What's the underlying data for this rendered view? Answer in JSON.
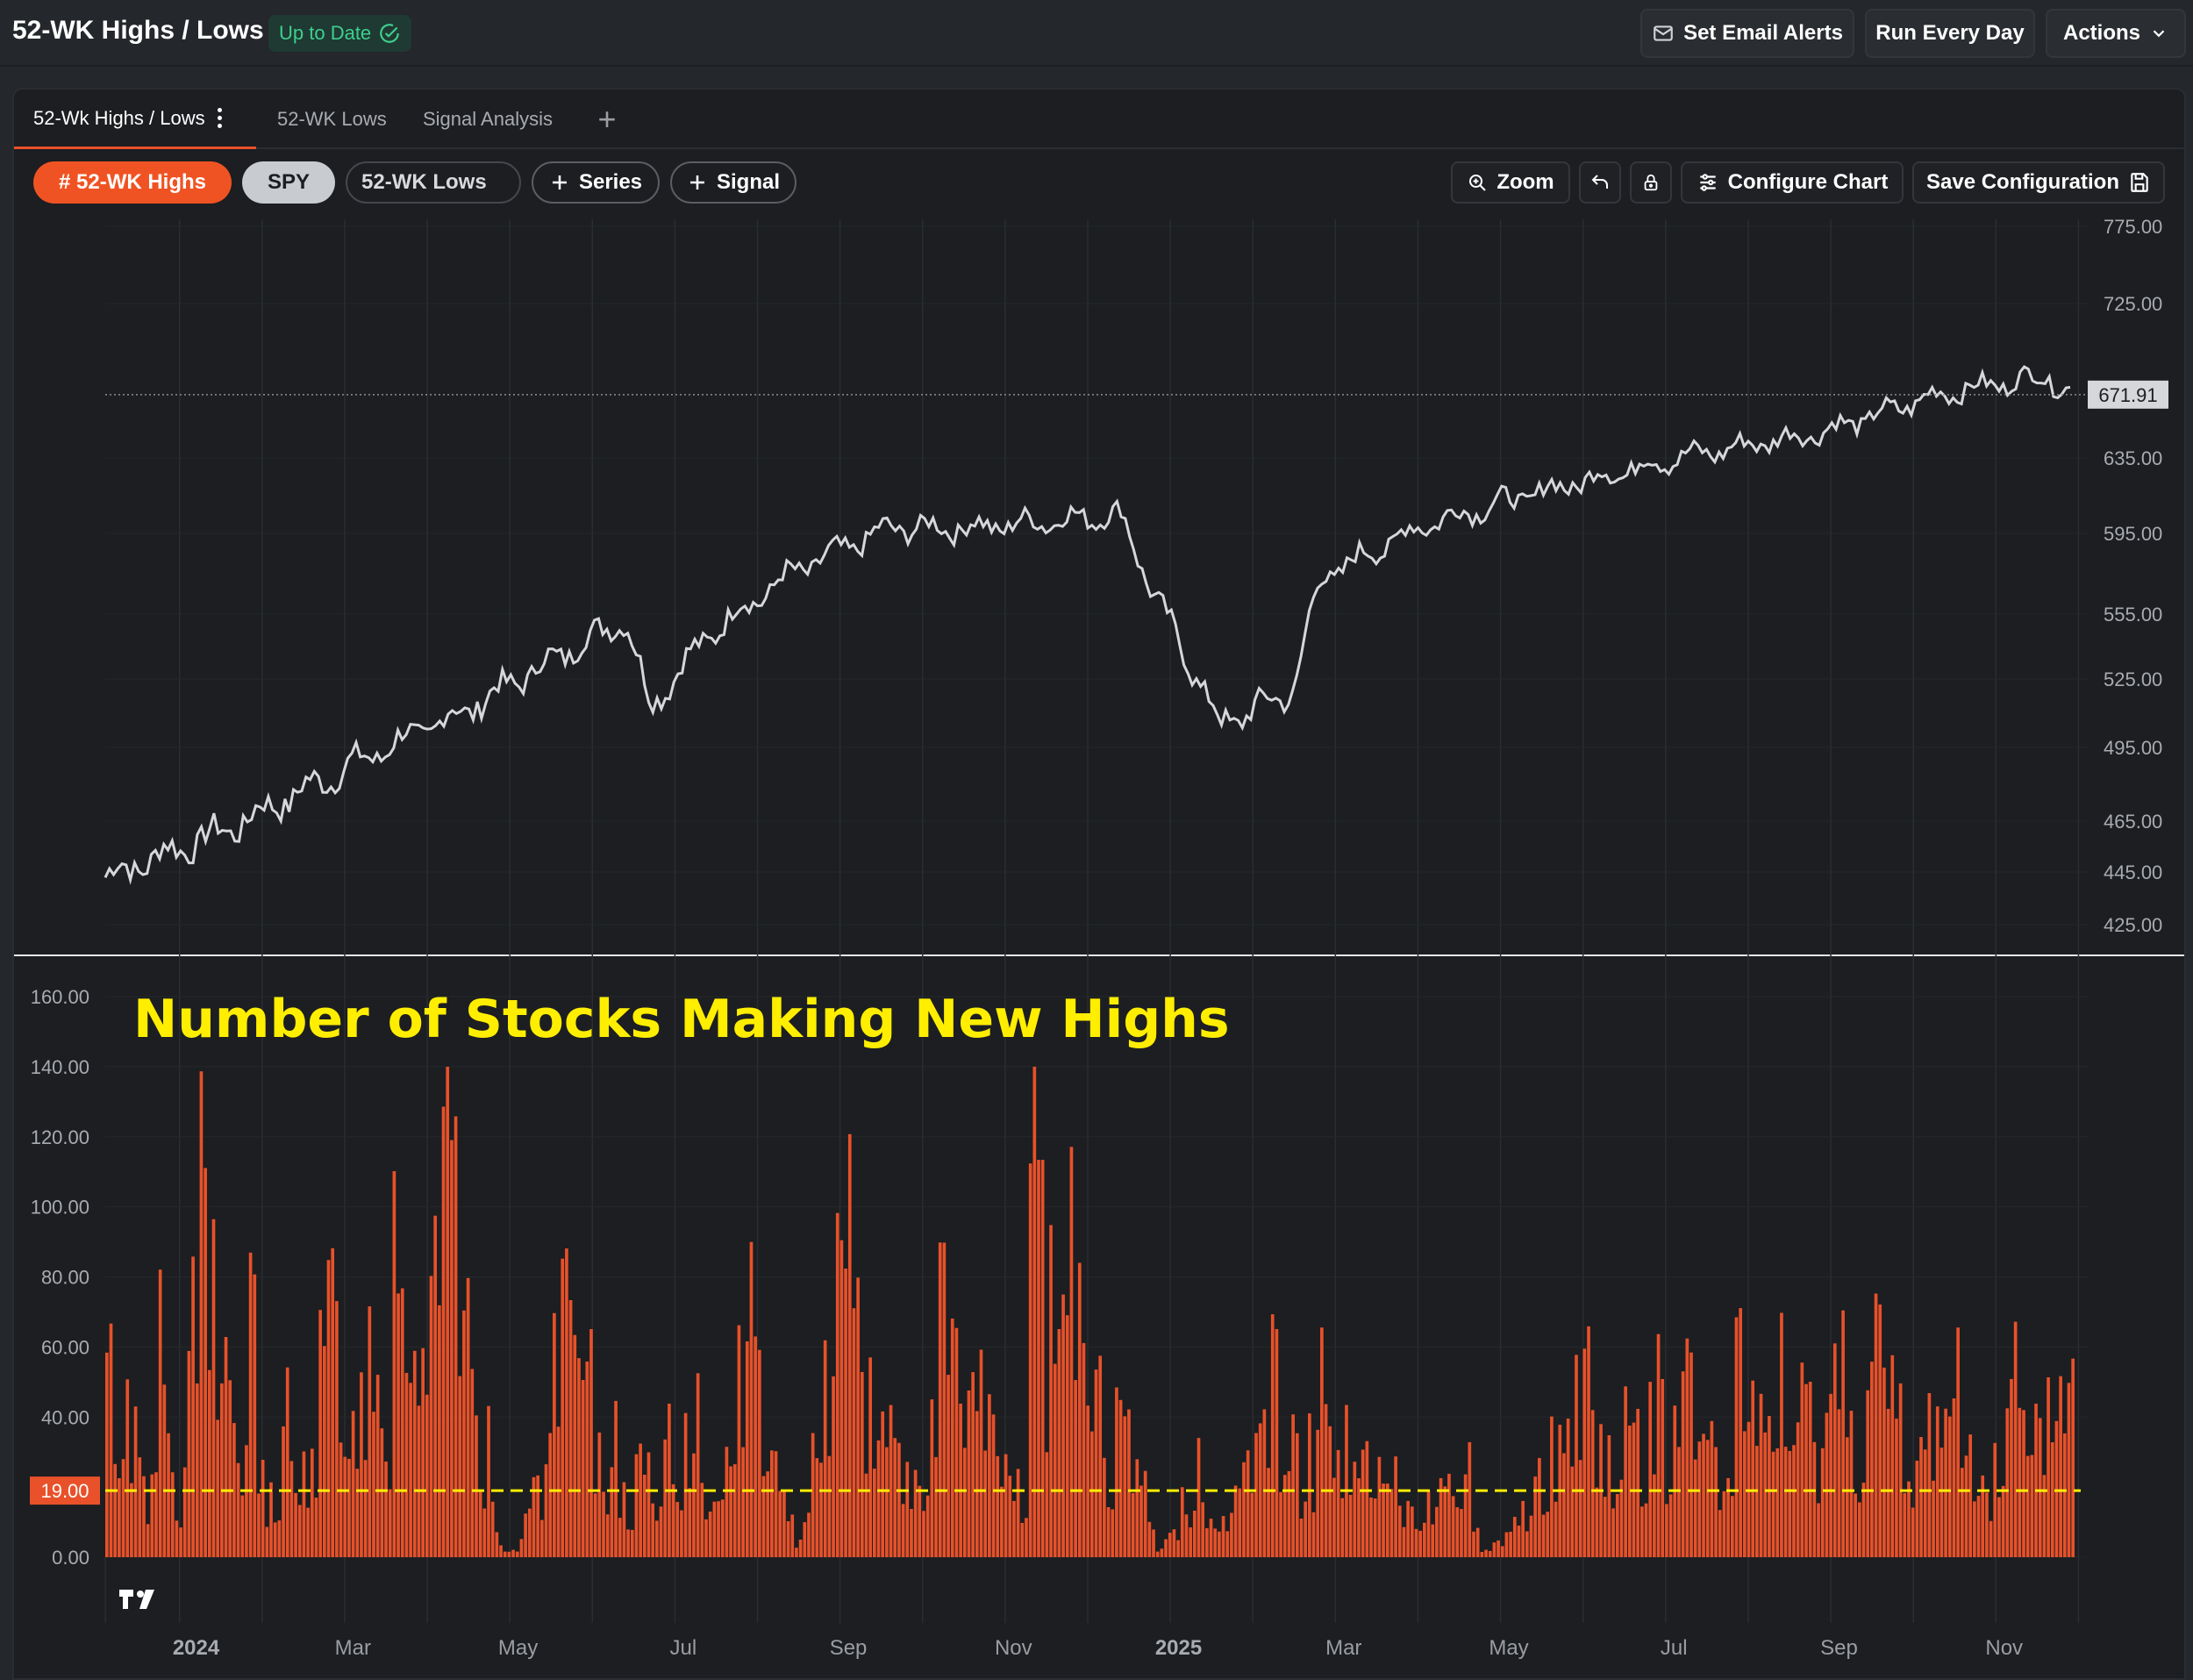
{
  "header": {
    "title": "52-WK Highs / Lows",
    "status": "Up to Date",
    "set_email_alerts": "Set Email Alerts",
    "run_every_day": "Run Every Day",
    "actions": "Actions"
  },
  "tabs": [
    {
      "label": "52-Wk Highs / Lows",
      "active": true
    },
    {
      "label": "52-WK Lows",
      "active": false
    },
    {
      "label": "Signal Analysis",
      "active": false
    }
  ],
  "toolbar": {
    "series_chips": [
      "# 52-WK Highs",
      "SPY",
      "52-WK Lows"
    ],
    "add_series": "Series",
    "add_signal": "Signal",
    "zoom": "Zoom",
    "configure_chart": "Configure Chart",
    "save_configuration": "Save Configuration"
  },
  "colors": {
    "accent": "#e8512a",
    "bar_fill": "#e8512a",
    "price_line": "#d5d7da",
    "threshold_line": "#ffee00",
    "annotation_text": "#ffee00",
    "chip_highs_bg": "#f05323",
    "chip_spy_bg": "#c8cbcf"
  },
  "icons": [
    "check-circle-icon",
    "mail-icon",
    "chevron-down-icon",
    "kebab-menu-icon",
    "plus-icon",
    "zoom-icon",
    "undo-icon",
    "lock-icon",
    "sliders-icon",
    "save-icon",
    "tradingview-logo"
  ],
  "chart_data": [
    {
      "type": "line",
      "series": [
        {
          "name": "SPY"
        }
      ],
      "y_ticks": [
        "775.00",
        "725.00",
        "671.91",
        "635.00",
        "595.00",
        "555.00",
        "525.00",
        "495.00",
        "465.00",
        "445.00",
        "425.00"
      ],
      "last_value": "671.91",
      "anchors_month_index": [
        0,
        1.5,
        3,
        4.4,
        6.3,
        6.6,
        7.3,
        8.3,
        9.5,
        10.5,
        12.3,
        12.7,
        13.5,
        14.4,
        14.7,
        16,
        16.4,
        17.2,
        19,
        20.8,
        22.2,
        23.5,
        23.8
      ],
      "anchors_value": [
        443,
        462,
        488,
        512,
        553,
        513,
        545,
        575,
        598,
        598,
        605,
        565,
        505,
        520,
        572,
        600,
        605,
        615,
        635,
        650,
        672,
        683,
        672
      ]
    },
    {
      "type": "bar",
      "series": [
        {
          "name": "# 52-WK Highs"
        }
      ],
      "annotation": "Number of Stocks Making New Highs",
      "threshold": "19.00",
      "threshold_value": 19,
      "y_ticks": [
        "160.00",
        "140.00",
        "120.00",
        "100.00",
        "80.00",
        "60.00",
        "40.00",
        "0.00"
      ],
      "ylim": [
        0,
        160
      ],
      "x_tick_labels": [
        "2024",
        "Mar",
        "May",
        "Jul",
        "Sep",
        "Nov",
        "2025",
        "Mar",
        "May",
        "Jul",
        "Sep",
        "Nov"
      ],
      "sample_values": [
        58,
        39,
        48,
        44,
        22,
        55,
        70,
        30,
        12,
        48,
        76,
        118,
        95,
        88,
        60,
        40,
        28,
        80,
        35,
        18,
        10,
        50,
        46,
        32,
        25,
        60,
        84,
        76,
        55,
        40,
        62,
        86,
        70,
        45,
        121,
        108,
        60,
        95,
        72,
        80,
        133,
        104,
        90,
        64,
        40,
        35,
        16,
        4,
        2,
        10,
        20,
        28,
        35,
        66,
        72,
        85,
        48,
        62,
        34,
        24,
        44,
        30,
        18,
        28,
        24,
        20,
        32,
        38,
        28,
        44,
        50,
        12,
        20,
        30,
        44,
        55,
        95,
        60,
        48,
        30,
        18,
        10,
        6,
        28,
        48,
        60,
        70,
        88,
        115,
        76,
        55,
        60,
        46,
        36,
        40,
        25,
        20,
        35,
        48,
        78,
        86,
        62,
        50,
        44,
        52,
        40,
        30,
        28,
        24,
        20,
        124,
        108,
        78,
        62,
        96,
        94,
        80,
        55,
        62,
        38,
        42,
        34,
        28,
        20,
        10,
        4,
        6,
        8,
        18,
        24,
        40,
        12,
        8,
        10,
        20,
        26,
        40,
        55,
        40,
        62,
        44,
        34,
        28,
        36,
        58,
        48,
        55,
        40,
        36,
        30,
        28,
        26,
        20,
        24,
        14,
        22,
        10,
        18,
        14,
        26,
        40,
        30,
        34,
        8,
        2,
        4,
        6,
        10,
        14,
        20,
        24,
        28,
        34,
        44,
        40,
        55,
        58,
        40,
        42,
        30,
        36,
        48,
        40,
        22,
        56,
        62,
        40,
        38,
        50,
        60,
        44,
        34,
        30,
        24,
        62,
        36,
        48,
        56,
        44,
        60,
        34,
        40,
        48,
        46,
        44,
        54,
        60,
        66,
        50,
        38,
        56,
        70,
        48,
        42,
        24,
        30,
        36,
        44,
        52,
        58,
        62,
        34,
        40,
        48,
        22,
        30,
        36,
        64,
        40,
        28,
        36,
        46,
        58,
        57,
        54
      ]
    }
  ]
}
